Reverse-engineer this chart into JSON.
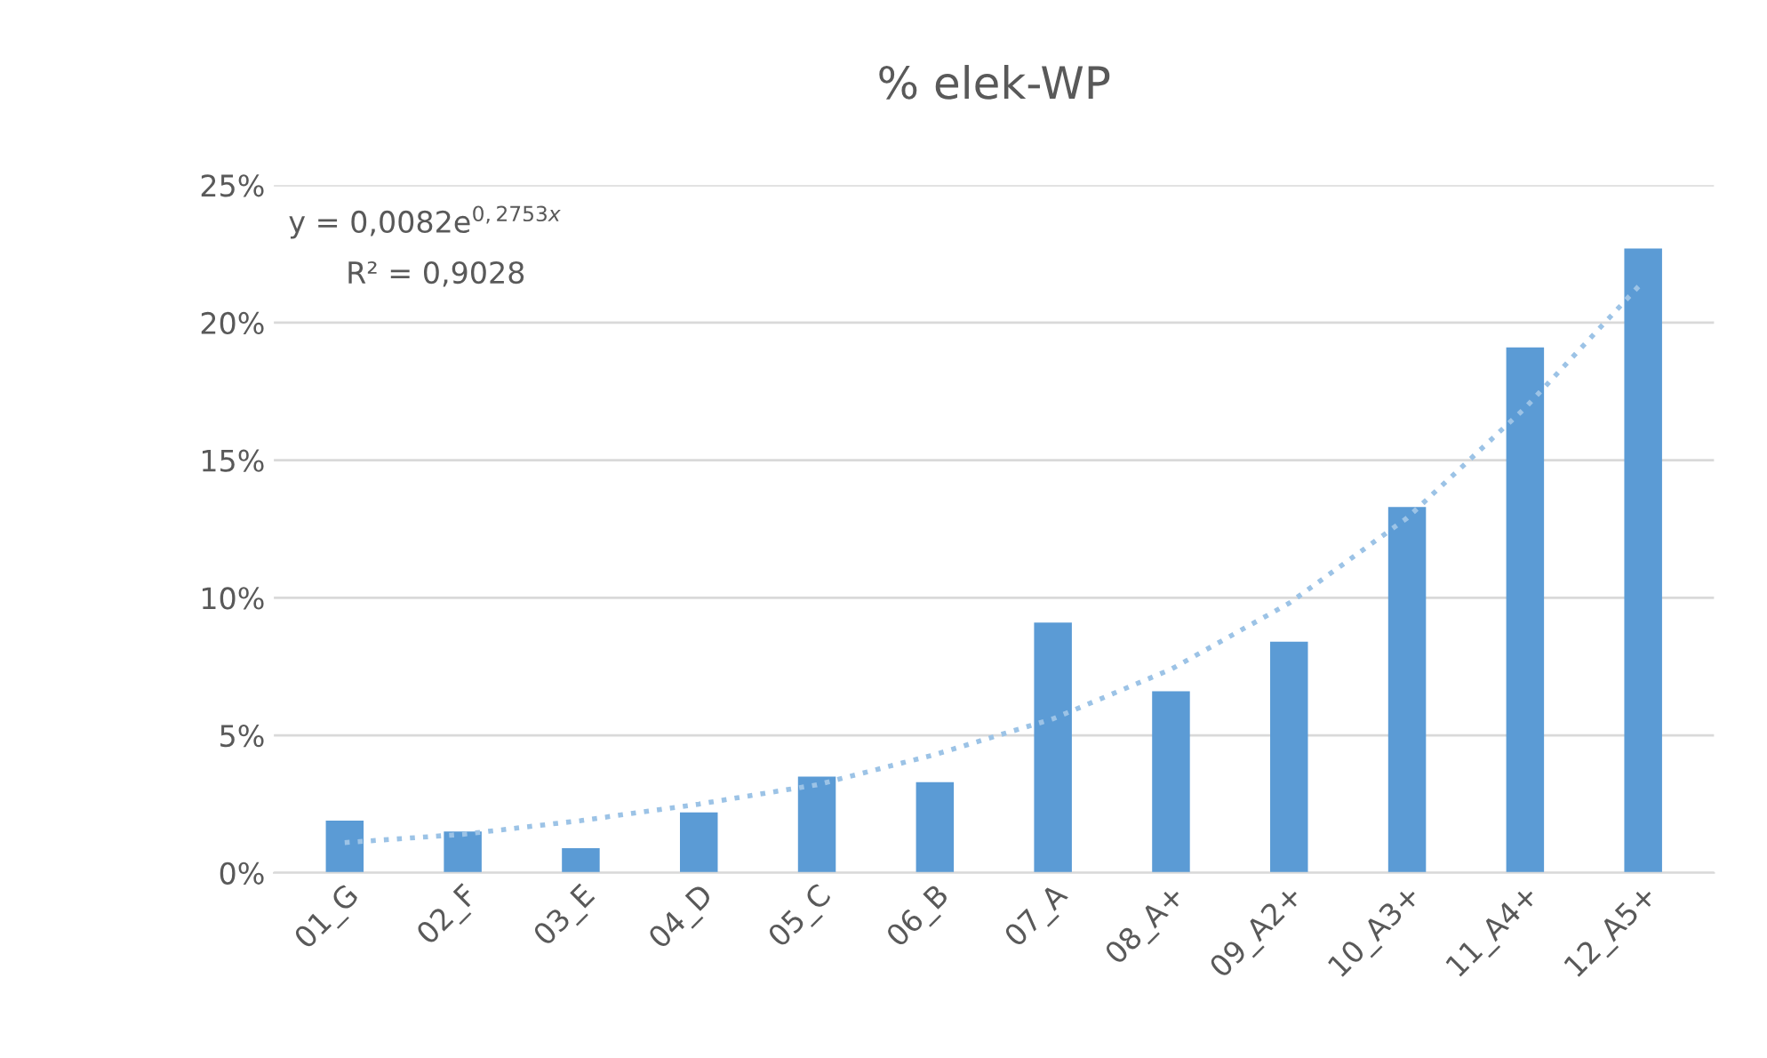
{
  "chart_data": {
    "type": "bar",
    "title": "% elek-WP",
    "categories": [
      "01_G",
      "02_F",
      "03_E",
      "04_D",
      "05_C",
      "06_B",
      "07_A",
      "08_A+",
      "09_A2+",
      "10_A3+",
      "11_A4+",
      "12_A5+"
    ],
    "series": [
      {
        "color": "#5b9bd5",
        "values": [
          1.9,
          1.5,
          0.9,
          2.2,
          3.5,
          3.3,
          9.1,
          6.6,
          8.4,
          13.3,
          19.1,
          22.7
        ]
      },
      {
        "type": "line",
        "color": "#9cc3e6",
        "line_style": "dotted",
        "values": [
          1.1,
          1.4,
          1.9,
          2.5,
          3.2,
          4.3,
          5.6,
          7.4,
          9.8,
          12.9,
          16.9,
          21.5
        ]
      }
    ],
    "ylim": [
      0,
      25
    ],
    "yticks": [
      {
        "value": 0,
        "label": "0%"
      },
      {
        "value": 5,
        "label": "5%"
      },
      {
        "value": 10,
        "label": "10%"
      },
      {
        "value": 15,
        "label": "15%"
      },
      {
        "value": 20,
        "label": "20%"
      },
      {
        "value": 25,
        "label": "25%"
      }
    ],
    "grid": "y",
    "annotations": [
      "y = 0,0082e$^{0,2753x}$",
      "R² = 0,9028"
    ]
  }
}
